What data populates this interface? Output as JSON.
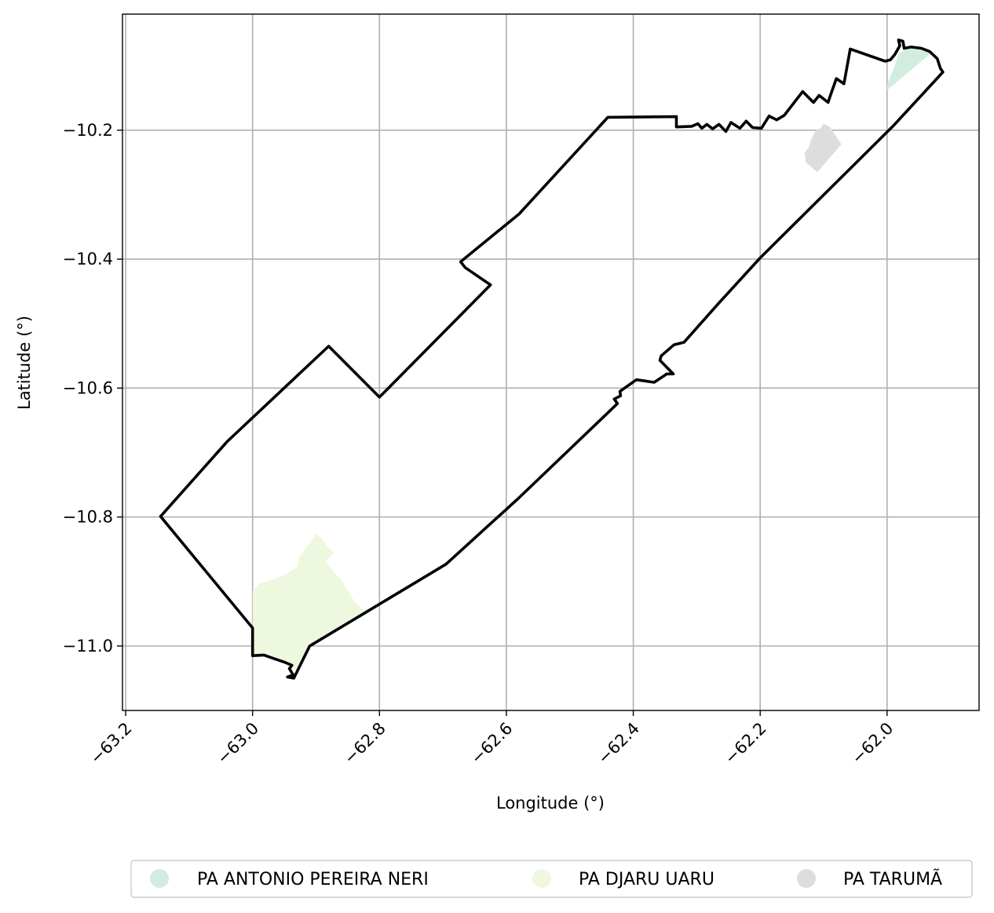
{
  "chart_data": {
    "type": "map",
    "xlabel": "Longitude (°)",
    "ylabel": "Latitude (°)",
    "xlim": [
      -63.205,
      -61.855
    ],
    "ylim": [
      -11.1,
      -10.02
    ],
    "xticks": [
      -63.2,
      -63.0,
      -62.8,
      -62.6,
      -62.4,
      -62.2,
      -62.0
    ],
    "xtick_labels": [
      "−63.2",
      "−63.0",
      "−62.8",
      "−62.6",
      "−62.4",
      "−62.2",
      "−62.0"
    ],
    "yticks": [
      -10.2,
      -10.4,
      -10.6,
      -10.8,
      -11.0
    ],
    "ytick_labels": [
      "−10.2",
      "−10.4",
      "−10.6",
      "−10.8",
      "−11.0"
    ],
    "grid": true,
    "legend_position": "bottom-center",
    "boundary": {
      "color": "#000000",
      "points": [
        [
          -63.145,
          -10.799
        ],
        [
          -63.04,
          -10.683
        ],
        [
          -62.88,
          -10.535
        ],
        [
          -62.8,
          -10.614
        ],
        [
          -62.625,
          -10.44
        ],
        [
          -62.665,
          -10.413
        ],
        [
          -62.672,
          -10.404
        ],
        [
          -62.58,
          -10.33
        ],
        [
          -62.44,
          -10.18
        ],
        [
          -62.332,
          -10.179
        ],
        [
          -62.332,
          -10.195
        ],
        [
          -62.308,
          -10.194
        ],
        [
          -62.298,
          -10.19
        ],
        [
          -62.292,
          -10.197
        ],
        [
          -62.284,
          -10.191
        ],
        [
          -62.275,
          -10.198
        ],
        [
          -62.265,
          -10.191
        ],
        [
          -62.254,
          -10.202
        ],
        [
          -62.246,
          -10.188
        ],
        [
          -62.232,
          -10.197
        ],
        [
          -62.222,
          -10.186
        ],
        [
          -62.212,
          -10.196
        ],
        [
          -62.198,
          -10.197
        ],
        [
          -62.186,
          -10.178
        ],
        [
          -62.174,
          -10.184
        ],
        [
          -62.162,
          -10.177
        ],
        [
          -62.133,
          -10.14
        ],
        [
          -62.116,
          -10.157
        ],
        [
          -62.107,
          -10.146
        ],
        [
          -62.093,
          -10.157
        ],
        [
          -62.09,
          -10.148
        ],
        [
          -62.08,
          -10.12
        ],
        [
          -62.068,
          -10.128
        ],
        [
          -62.058,
          -10.074
        ],
        [
          -62.003,
          -10.093
        ],
        [
          -61.995,
          -10.091
        ],
        [
          -61.988,
          -10.083
        ],
        [
          -61.98,
          -10.069
        ],
        [
          -61.982,
          -10.06
        ],
        [
          -61.975,
          -10.062
        ],
        [
          -61.973,
          -10.073
        ],
        [
          -61.962,
          -10.071
        ],
        [
          -61.946,
          -10.073
        ],
        [
          -61.933,
          -10.078
        ],
        [
          -61.921,
          -10.089
        ],
        [
          -61.916,
          -10.104
        ],
        [
          -61.912,
          -10.11
        ],
        [
          -61.99,
          -10.193
        ],
        [
          -62.2,
          -10.398
        ],
        [
          -62.265,
          -10.468
        ],
        [
          -62.32,
          -10.529
        ],
        [
          -62.336,
          -10.533
        ],
        [
          -62.356,
          -10.55
        ],
        [
          -62.358,
          -10.557
        ],
        [
          -62.337,
          -10.578
        ],
        [
          -62.347,
          -10.578
        ],
        [
          -62.367,
          -10.591
        ],
        [
          -62.395,
          -10.587
        ],
        [
          -62.421,
          -10.605
        ],
        [
          -62.42,
          -10.612
        ],
        [
          -62.43,
          -10.617
        ],
        [
          -62.425,
          -10.624
        ],
        [
          -62.58,
          -10.77
        ],
        [
          -62.695,
          -10.873
        ],
        [
          -62.91,
          -11.0
        ],
        [
          -62.935,
          -11.05
        ],
        [
          -62.945,
          -11.048
        ],
        [
          -62.936,
          -11.045
        ],
        [
          -62.942,
          -11.035
        ],
        [
          -62.938,
          -11.03
        ],
        [
          -62.95,
          -11.025
        ],
        [
          -62.965,
          -11.02
        ],
        [
          -62.982,
          -11.014
        ],
        [
          -63.0,
          -11.015
        ],
        [
          -63.0,
          -10.972
        ],
        [
          -63.145,
          -10.799
        ]
      ]
    },
    "regions": [
      {
        "name": "PA ANTONIO PEREIRA NERI",
        "color": "#d2ede0",
        "points": [
          [
            -62.0,
            -10.13
          ],
          [
            -61.988,
            -10.1
          ],
          [
            -61.982,
            -10.082
          ],
          [
            -61.965,
            -10.071
          ],
          [
            -61.946,
            -10.073
          ],
          [
            -61.93,
            -10.08
          ],
          [
            -62.0,
            -10.138
          ]
        ]
      },
      {
        "name": "PA DJARU UARU",
        "color": "#eef8df",
        "points": [
          [
            -63.0,
            -10.915
          ],
          [
            -62.99,
            -10.903
          ],
          [
            -62.97,
            -10.898
          ],
          [
            -62.95,
            -10.89
          ],
          [
            -62.93,
            -10.878
          ],
          [
            -62.926,
            -10.862
          ],
          [
            -62.91,
            -10.84
          ],
          [
            -62.9,
            -10.825
          ],
          [
            -62.89,
            -10.835
          ],
          [
            -62.882,
            -10.846
          ],
          [
            -62.872,
            -10.856
          ],
          [
            -62.885,
            -10.87
          ],
          [
            -62.875,
            -10.882
          ],
          [
            -62.86,
            -10.898
          ],
          [
            -62.84,
            -10.93
          ],
          [
            -62.818,
            -10.95
          ],
          [
            -62.91,
            -11.0
          ],
          [
            -62.93,
            -11.036
          ],
          [
            -62.95,
            -11.025
          ],
          [
            -62.965,
            -11.02
          ],
          [
            -62.982,
            -11.014
          ],
          [
            -63.0,
            -11.015
          ],
          [
            -63.0,
            -10.972
          ]
        ]
      },
      {
        "name": "PA TARUMÃ",
        "color": "#dddddd",
        "points": [
          [
            -62.1,
            -10.19
          ],
          [
            -62.09,
            -10.195
          ],
          [
            -62.072,
            -10.222
          ],
          [
            -62.11,
            -10.265
          ],
          [
            -62.128,
            -10.25
          ],
          [
            -62.13,
            -10.235
          ],
          [
            -62.124,
            -10.228
          ],
          [
            -62.12,
            -10.215
          ],
          [
            -62.112,
            -10.2
          ],
          [
            -62.105,
            -10.197
          ]
        ]
      }
    ],
    "legend": [
      "PA ANTONIO PEREIRA NERI",
      "PA DJARU UARU",
      "PA TARUMÃ"
    ]
  }
}
